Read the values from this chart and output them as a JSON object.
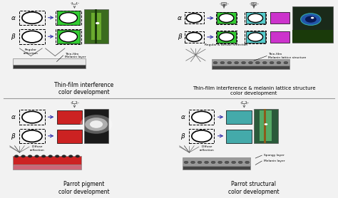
{
  "bg_color": "#f2f2f2",
  "titles": [
    "Thin-film interference\ncolor development",
    "Thin-film interference & melanin lattice structure\ncolor development",
    "Parrot pigment\ncolor development",
    "Parrot structural\ncolor development"
  ],
  "green_color": "#33cc33",
  "cyan_color": "#55cccc",
  "magenta_color": "#cc33cc",
  "red_color": "#cc2222",
  "teal_color": "#44aaaa",
  "arrow_color": "#3333aa",
  "gray_bg": "#e8e8e8"
}
